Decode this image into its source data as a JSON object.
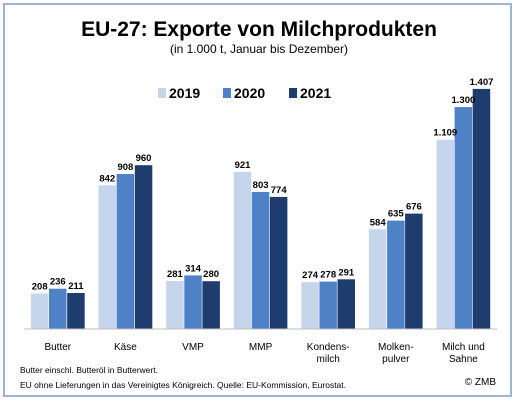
{
  "chart_data": {
    "type": "bar",
    "title": "EU-27: Exporte von Milchprodukten",
    "subtitle": "(in 1.000 t, Januar bis Dezember)",
    "categories": [
      [
        "Butter"
      ],
      [
        "Käse"
      ],
      [
        "VMP"
      ],
      [
        "MMP"
      ],
      [
        "Kondens-",
        "milch"
      ],
      [
        "Molken-",
        "pulver"
      ],
      [
        "Milch und",
        "Sahne"
      ]
    ],
    "series": [
      {
        "name": "2019",
        "color": "#c5d5ec",
        "values": [
          208,
          842,
          281,
          921,
          274,
          584,
          1109
        ],
        "labels": [
          "208",
          "842",
          "281",
          "921",
          "274",
          "584",
          "1.109"
        ]
      },
      {
        "name": "2020",
        "color": "#4f81c7",
        "values": [
          236,
          908,
          314,
          803,
          278,
          635,
          1300
        ],
        "labels": [
          "236",
          "908",
          "314",
          "803",
          "278",
          "635",
          "1.300"
        ]
      },
      {
        "name": "2021",
        "color": "#1f3c6e",
        "values": [
          211,
          960,
          280,
          774,
          291,
          676,
          1407
        ],
        "labels": [
          "211",
          "960",
          "280",
          "774",
          "291",
          "676",
          "1.407"
        ]
      }
    ],
    "ylim": [
      0,
      1500
    ],
    "grid": false,
    "legend_position": "top-center"
  },
  "notes": [
    "Butter einschl. Butteröl in Butterwert.",
    "EU ohne Lieferungen in das Vereinigtes Königreich. Quelle: EU-Kommission, Eurostat."
  ],
  "credit": "© ZMB"
}
